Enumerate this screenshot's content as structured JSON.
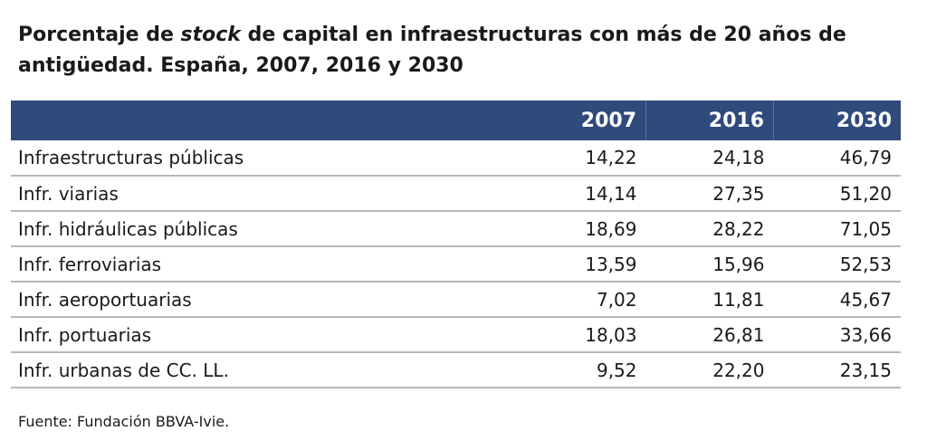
{
  "title": {
    "prefix": "Porcentaje de ",
    "italic": "stock",
    "suffix": " de capital en infraestructuras con más de 20 años de antigüedad. España, 2007, 2016 y 2030"
  },
  "table": {
    "headers": [
      "",
      "2007",
      "2016",
      "2030"
    ],
    "rows": [
      {
        "label": "Infraestructuras públicas",
        "v2007": "14,22",
        "v2016": "24,18",
        "v2030": "46,79"
      },
      {
        "label": "Infr. viarias",
        "v2007": "14,14",
        "v2016": "27,35",
        "v2030": "51,20"
      },
      {
        "label": "Infr. hidráulicas públicas",
        "v2007": "18,69",
        "v2016": "28,22",
        "v2030": "71,05"
      },
      {
        "label": "Infr. ferroviarias",
        "v2007": "13,59",
        "v2016": "15,96",
        "v2030": "52,53"
      },
      {
        "label": "Infr. aeroportuarias",
        "v2007": "7,02",
        "v2016": "11,81",
        "v2030": "45,67"
      },
      {
        "label": "Infr. portuarias",
        "v2007": "18,03",
        "v2016": "26,81",
        "v2030": "33,66"
      },
      {
        "label": "Infr. urbanas de CC. LL.",
        "v2007": "9,52",
        "v2016": "22,20",
        "v2030": "23,15"
      }
    ]
  },
  "source": "Fuente: Fundación BBVA-Ivie.",
  "colors": {
    "header_bg": "#2f4a7b",
    "header_text": "#ffffff",
    "row_divider": "#b8b8b8"
  }
}
